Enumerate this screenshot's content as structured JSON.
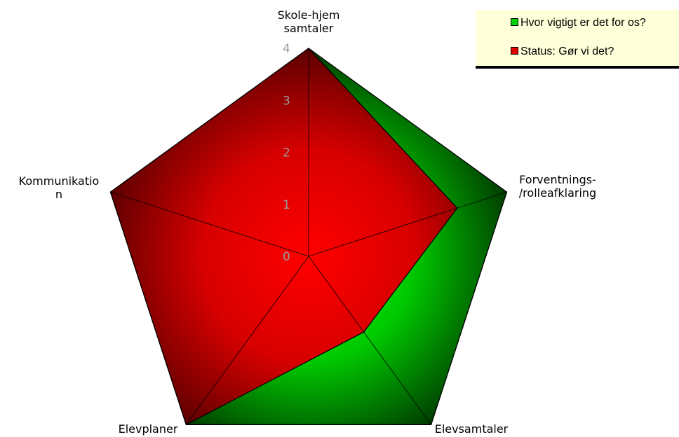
{
  "chart_data": {
    "type": "radar",
    "categories": [
      "Skole-hjem samtaler",
      "Forventnings-/rolleafklaring",
      "Elevsamtaler",
      "Elevplaner",
      "Kommunikation"
    ],
    "category_label_lines": [
      [
        "Skole-hjem",
        "samtaler"
      ],
      [
        "Forventnings-",
        "/rolleafklaring"
      ],
      [
        "Elevsamtaler"
      ],
      [
        "Elevplaner"
      ],
      [
        "Kommunikatio",
        "n"
      ]
    ],
    "r_ticks": [
      "0",
      "1",
      "2",
      "3",
      "4"
    ],
    "rlim": [
      0,
      4
    ],
    "series": [
      {
        "name": "Hvor vigtigt er det for os?",
        "values": [
          4,
          4,
          4,
          4,
          4
        ],
        "color": "#00b000"
      },
      {
        "name": "Status: Gør vi det?",
        "values": [
          4,
          3,
          1.8,
          4,
          4
        ],
        "color": "#e00000"
      }
    ],
    "legend_position": "top-right",
    "grid": false
  }
}
